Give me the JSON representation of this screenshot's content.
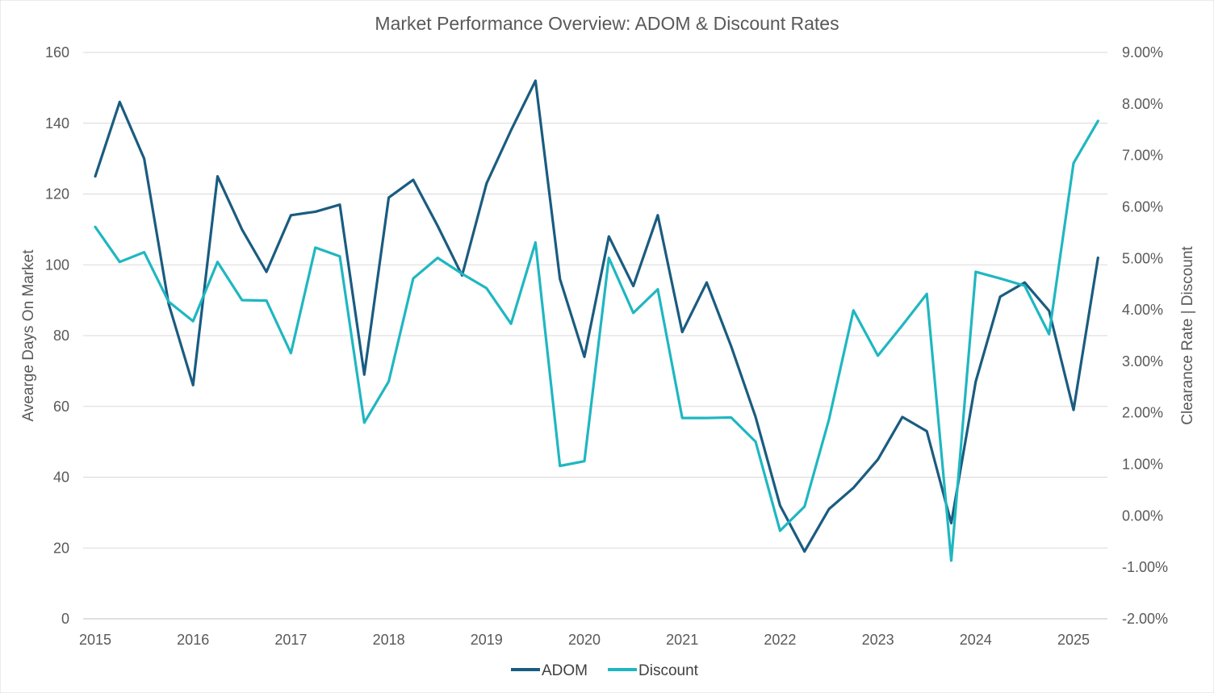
{
  "chart_data": {
    "type": "line",
    "title": "Market Performance Overview: ADOM & Discount Rates",
    "ylabel": "Avearge Days On Market",
    "y2label": "Clearance Rate | Discount",
    "ylim": [
      0,
      160
    ],
    "y2lim": [
      -0.02,
      0.09
    ],
    "yticks": [
      "0",
      "20",
      "40",
      "60",
      "80",
      "100",
      "120",
      "140",
      "160"
    ],
    "y2ticks": [
      "-2.00%",
      "-1.00%",
      "0.00%",
      "1.00%",
      "2.00%",
      "3.00%",
      "4.00%",
      "5.00%",
      "6.00%",
      "7.00%",
      "8.00%",
      "9.00%"
    ],
    "year_labels": [
      "2015",
      "2016",
      "2017",
      "2018",
      "2019",
      "2020",
      "2021",
      "2022",
      "2023",
      "2024",
      "2025"
    ],
    "x": [
      "2015 Q1",
      "2015 Q2",
      "2015 Q3",
      "2015 Q4",
      "2016 Q1",
      "2016 Q2",
      "2016 Q3",
      "2016 Q4",
      "2017 Q1",
      "2017 Q2",
      "2017 Q3",
      "2017 Q4",
      "2018 Q1",
      "2018 Q2",
      "2018 Q3",
      "2018 Q4",
      "2019 Q1",
      "2019 Q2",
      "2019 Q3",
      "2019 Q4",
      "2020 Q1",
      "2020 Q2",
      "2020 Q3",
      "2020 Q4",
      "2021 Q1",
      "2021 Q2",
      "2021 Q3",
      "2021 Q4",
      "2022 Q1",
      "2022 Q2",
      "2022 Q3",
      "2022 Q4",
      "2023 Q1",
      "2023 Q2",
      "2023 Q3",
      "2023 Q4",
      "2024 Q1",
      "2024 Q2",
      "2024 Q3",
      "2024 Q4",
      "2025 Q1",
      "2025 Q2"
    ],
    "grid": true,
    "legend_position": "bottom-center",
    "series": [
      {
        "name": "ADOM",
        "axis": "left",
        "color": "#1a5c80",
        "values": [
          125,
          146,
          130,
          89,
          66,
          125,
          110,
          98,
          114,
          115,
          117,
          69,
          119,
          124,
          111,
          97,
          123,
          138,
          152,
          96,
          74,
          108,
          94,
          114,
          81,
          95,
          77,
          57,
          32,
          19,
          31,
          37,
          45,
          57,
          53,
          27,
          67,
          91,
          95,
          87,
          59,
          102
        ]
      },
      {
        "name": "Discount",
        "axis": "right",
        "color": "#1fb7c1",
        "values": [
          0.0561,
          0.0493,
          0.0512,
          0.0416,
          0.0378,
          0.0493,
          0.0419,
          0.0418,
          0.0316,
          0.0521,
          0.0504,
          0.0181,
          0.0261,
          0.0461,
          0.0501,
          0.047,
          0.0442,
          0.0373,
          0.0531,
          0.0097,
          0.0106,
          0.0501,
          0.0394,
          0.044,
          0.019,
          0.019,
          0.0191,
          0.0144,
          -0.0029,
          0.0018,
          0.0187,
          0.0399,
          0.0311,
          0.037,
          0.0431,
          -0.0087,
          0.0474,
          0.0461,
          0.0447,
          0.0353,
          0.0685,
          0.0767
        ]
      }
    ]
  }
}
